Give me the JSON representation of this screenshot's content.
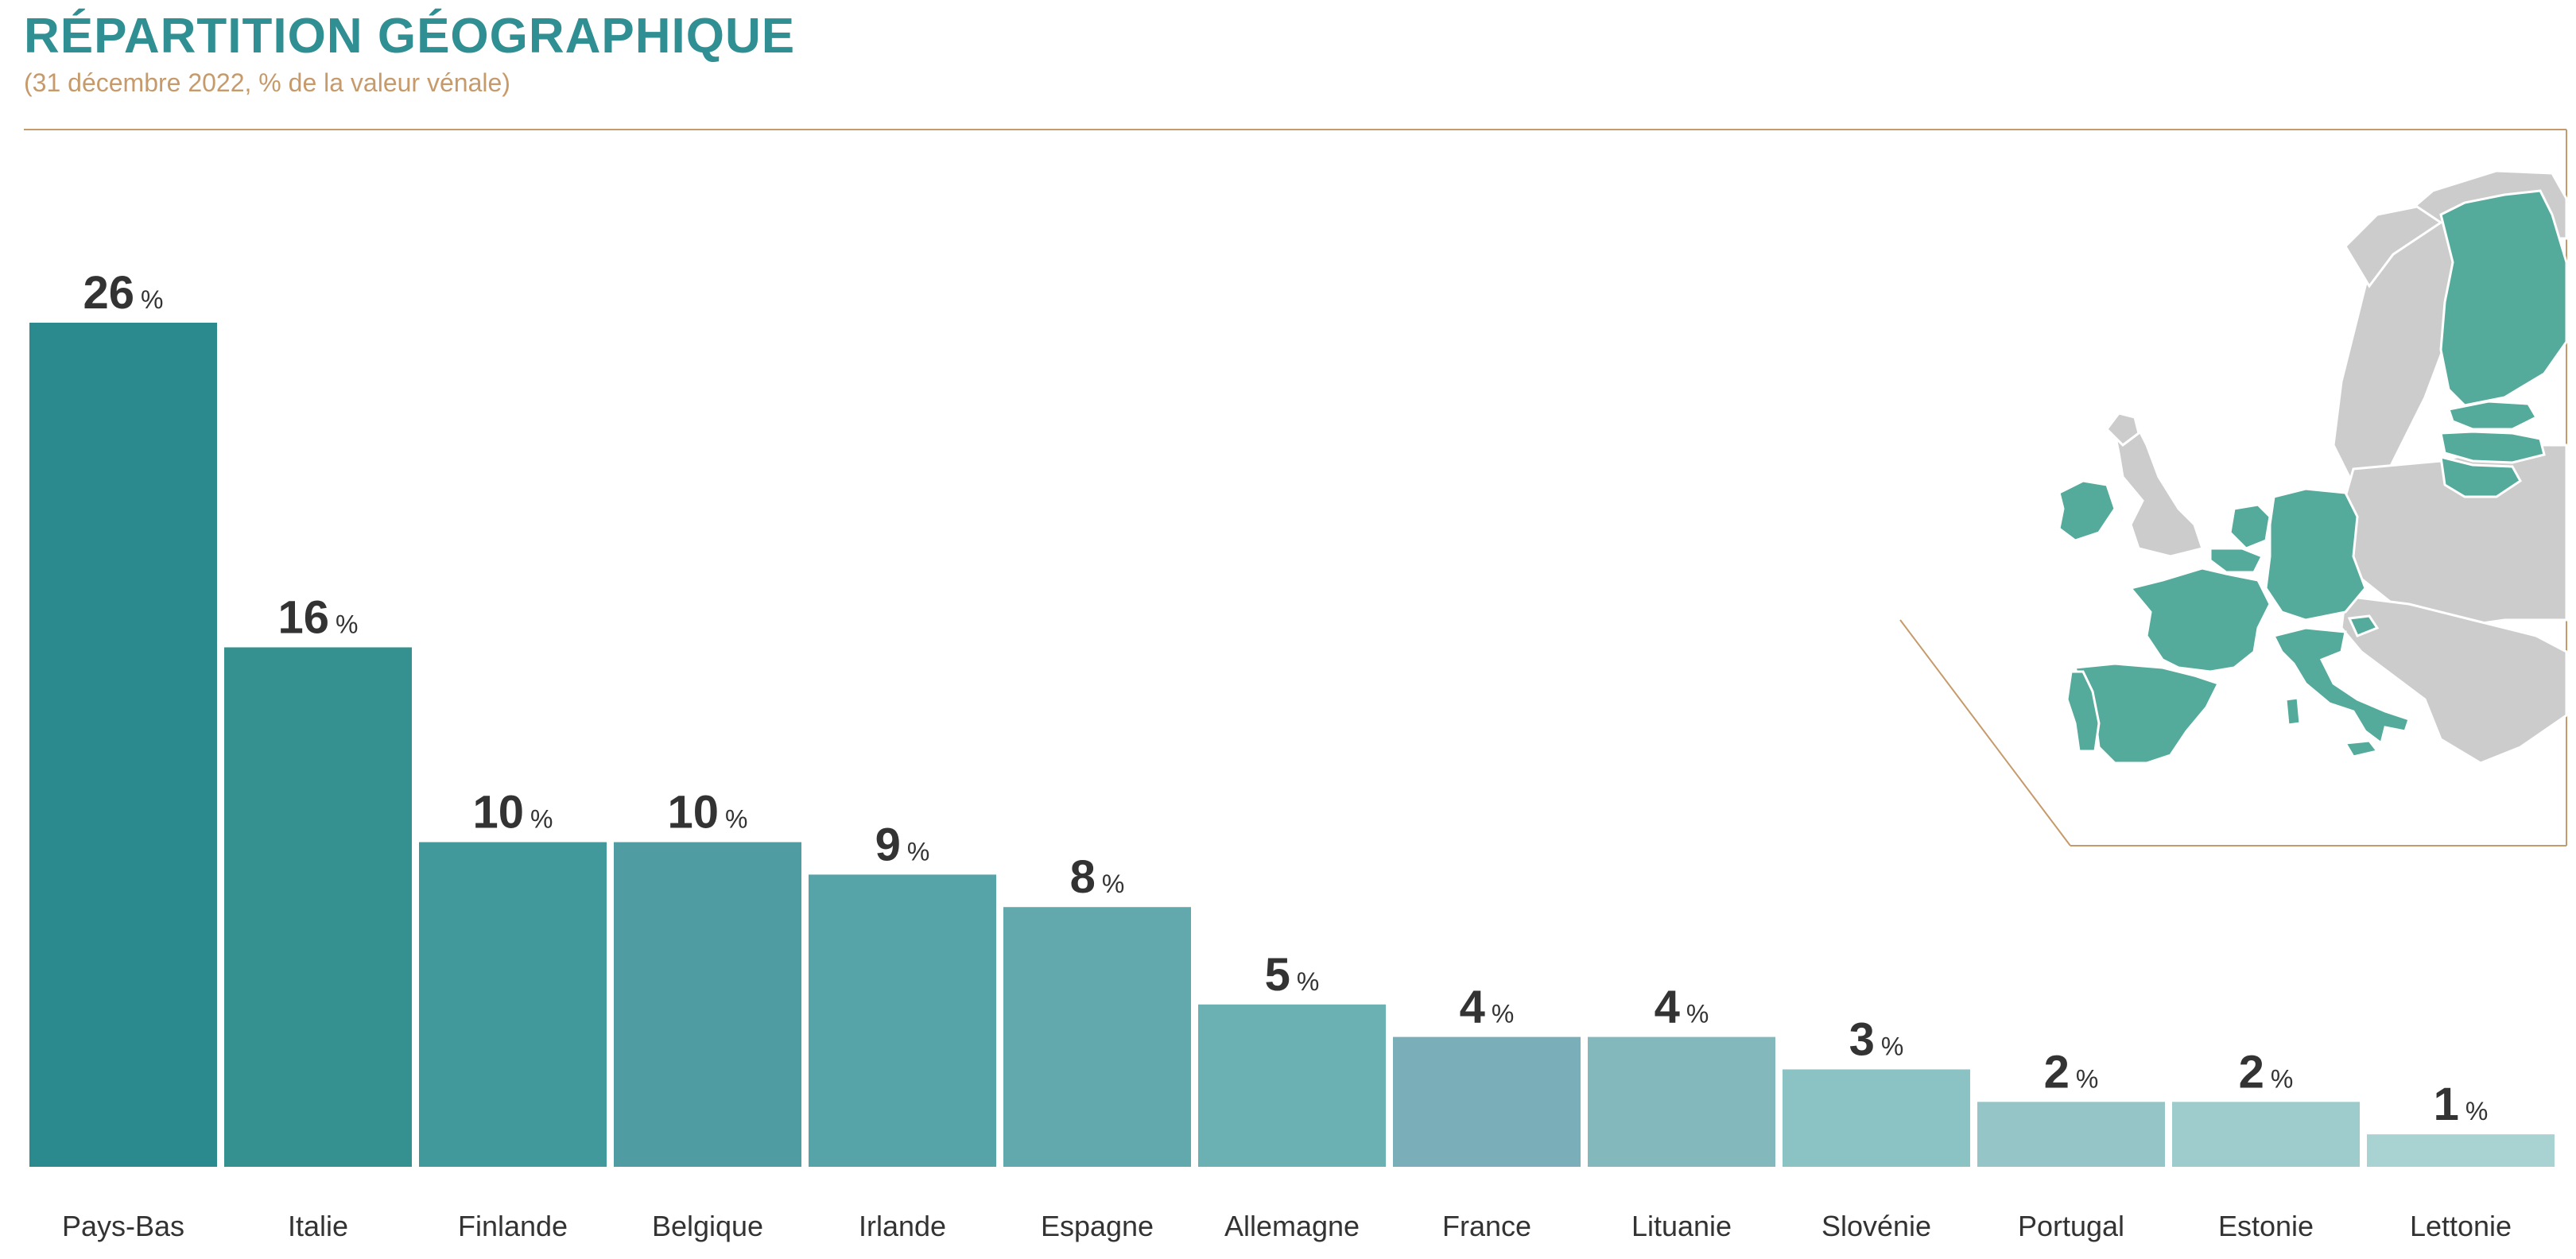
{
  "title": "RÉPARTITION GÉOGRAPHIQUE",
  "subtitle": "(31 décembre 2022, % de la valeur vénale)",
  "chart_data": {
    "type": "bar",
    "categories": [
      "Pays-Bas",
      "Italie",
      "Finlande",
      "Belgique",
      "Irlande",
      "Espagne",
      "Allemagne",
      "France",
      "Lituanie",
      "Slovénie",
      "Portugal",
      "Estonie",
      "Lettonie"
    ],
    "values": [
      26,
      16,
      10,
      10,
      9,
      8,
      5,
      4,
      4,
      3,
      2,
      2,
      1
    ],
    "value_suffix": "%",
    "ylim": [
      0,
      26
    ],
    "grid": false,
    "colors": [
      "#2b8a8d",
      "#35918f",
      "#42999b",
      "#4f9ca2",
      "#56a3a8",
      "#62a9ad",
      "#6bb0b3",
      "#7aaeb8",
      "#83b9bc",
      "#8bc2c3",
      "#96c5c7",
      "#9ecbcb",
      "#a9d3d3"
    ]
  },
  "map": {
    "icon": "europe-map-icon",
    "highlight_color": "#55ab9b",
    "base_color": "#cccccc"
  }
}
